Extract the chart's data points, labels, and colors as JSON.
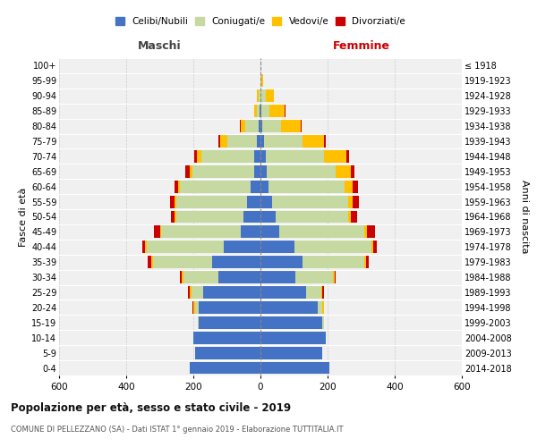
{
  "age_groups": [
    "0-4",
    "5-9",
    "10-14",
    "15-19",
    "20-24",
    "25-29",
    "30-34",
    "35-39",
    "40-44",
    "45-49",
    "50-54",
    "55-59",
    "60-64",
    "65-69",
    "70-74",
    "75-79",
    "80-84",
    "85-89",
    "90-94",
    "95-99",
    "100+"
  ],
  "birth_years": [
    "2014-2018",
    "2009-2013",
    "2004-2008",
    "1999-2003",
    "1994-1998",
    "1989-1993",
    "1984-1988",
    "1979-1983",
    "1974-1978",
    "1969-1973",
    "1964-1968",
    "1959-1963",
    "1954-1958",
    "1949-1953",
    "1944-1948",
    "1939-1943",
    "1934-1938",
    "1929-1933",
    "1924-1928",
    "1919-1923",
    "≤ 1918"
  ],
  "males": {
    "celibi": [
      210,
      195,
      200,
      185,
      185,
      170,
      125,
      145,
      110,
      60,
      50,
      40,
      30,
      18,
      20,
      10,
      5,
      2,
      0,
      0,
      0
    ],
    "coniugati": [
      0,
      0,
      0,
      2,
      10,
      35,
      105,
      175,
      230,
      235,
      200,
      210,
      210,
      185,
      155,
      90,
      40,
      10,
      5,
      0,
      0
    ],
    "vedovi": [
      0,
      0,
      0,
      0,
      5,
      5,
      5,
      5,
      5,
      5,
      5,
      5,
      5,
      8,
      15,
      20,
      15,
      8,
      5,
      0,
      0
    ],
    "divorziati": [
      0,
      0,
      0,
      0,
      2,
      5,
      5,
      10,
      8,
      18,
      12,
      15,
      10,
      12,
      8,
      5,
      2,
      0,
      0,
      0,
      0
    ]
  },
  "females": {
    "nubili": [
      205,
      185,
      195,
      185,
      170,
      135,
      105,
      125,
      100,
      55,
      45,
      35,
      25,
      18,
      15,
      10,
      5,
      2,
      0,
      0,
      0
    ],
    "coniugate": [
      0,
      0,
      0,
      3,
      15,
      45,
      110,
      185,
      230,
      255,
      215,
      225,
      225,
      205,
      175,
      115,
      55,
      25,
      15,
      2,
      0
    ],
    "vedove": [
      0,
      0,
      0,
      0,
      3,
      5,
      5,
      5,
      5,
      8,
      10,
      15,
      25,
      45,
      65,
      65,
      60,
      45,
      25,
      5,
      0
    ],
    "divorziate": [
      0,
      0,
      0,
      0,
      2,
      3,
      5,
      8,
      12,
      22,
      18,
      18,
      15,
      12,
      8,
      5,
      3,
      2,
      0,
      0,
      0
    ]
  },
  "colors": {
    "celibi": "#4472c4",
    "coniugati": "#c5d9a0",
    "vedovi": "#ffc000",
    "divorziati": "#cc0000"
  },
  "title": "Popolazione per età, sesso e stato civile - 2019",
  "subtitle": "COMUNE DI PELLEZZANO (SA) - Dati ISTAT 1° gennaio 2019 - Elaborazione TUTTITALIA.IT",
  "xlabel_left": "Maschi",
  "xlabel_right": "Femmine",
  "ylabel_left": "Fasce di età",
  "ylabel_right": "Anni di nascita",
  "xlim": 600,
  "legend_labels": [
    "Celibi/Nubili",
    "Coniugati/e",
    "Vedovi/e",
    "Divorziati/e"
  ],
  "bg_color": "#f0f0f0",
  "maschi_color": "#444444",
  "femmine_color": "#cc0000"
}
